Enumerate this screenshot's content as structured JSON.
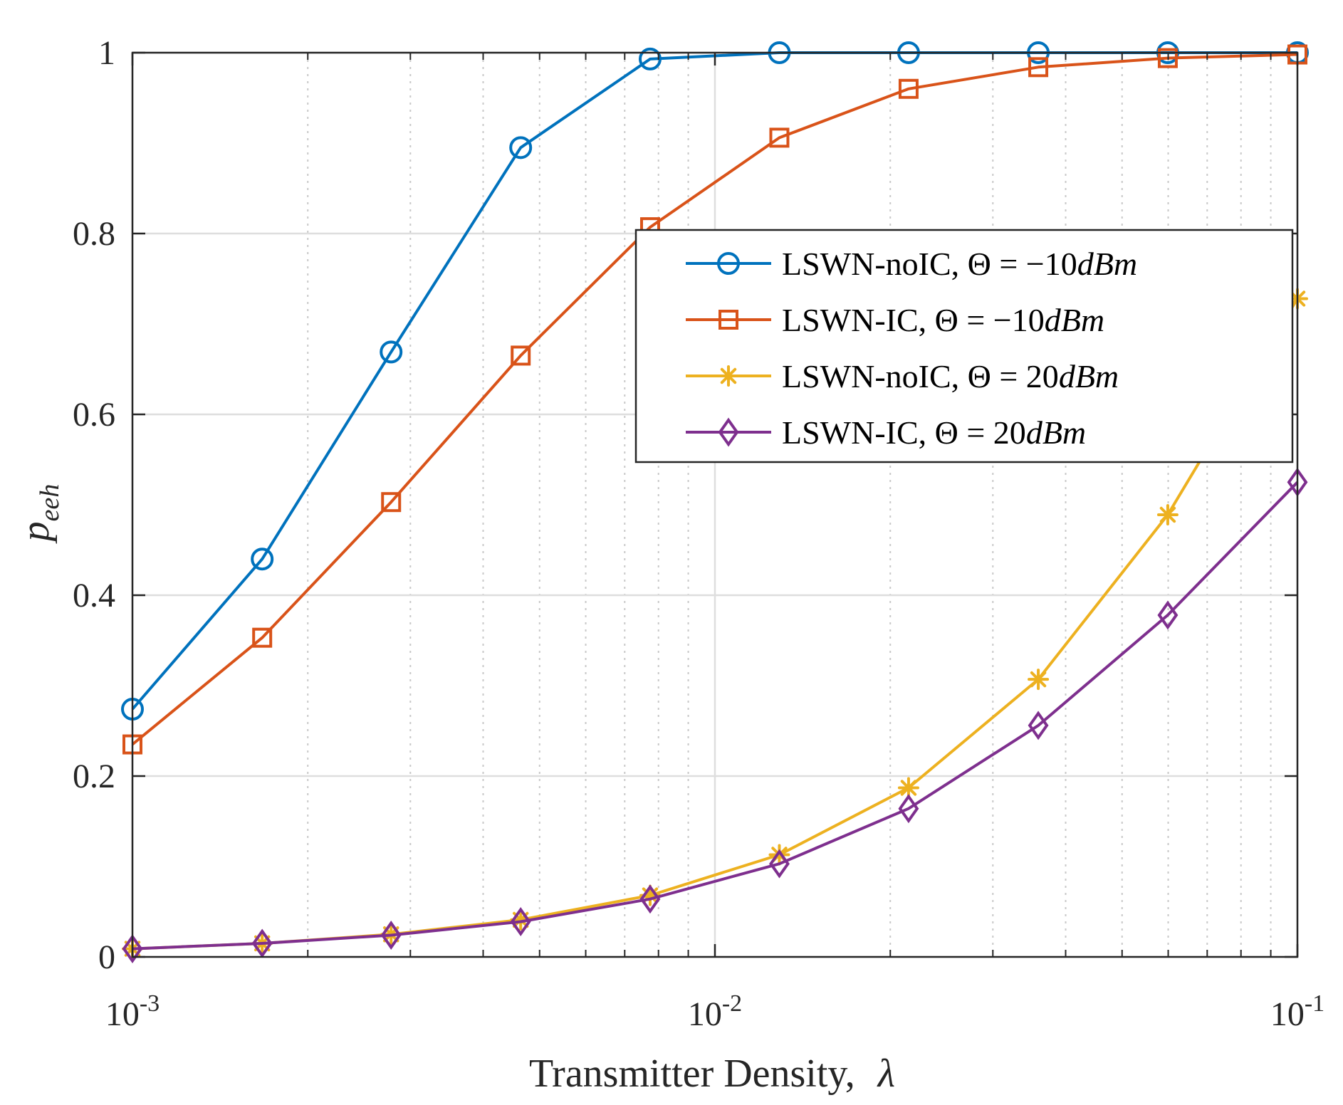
{
  "chart_data": {
    "type": "line",
    "title": "",
    "xlabel": "Transmitter Density,",
    "xlabel_symbol": "λ",
    "ylabel": "p",
    "ylabel_subscript": "eeh",
    "xscale": "log",
    "xlim": [
      0.001,
      0.1
    ],
    "ylim": [
      0,
      1
    ],
    "grid": true,
    "x_ticks": [
      {
        "value": 0.001,
        "base": "10",
        "exp": "-3"
      },
      {
        "value": 0.01,
        "base": "10",
        "exp": "-2"
      },
      {
        "value": 0.1,
        "base": "10",
        "exp": "-1"
      }
    ],
    "y_ticks": [
      {
        "value": 0,
        "label": "0"
      },
      {
        "value": 0.2,
        "label": "0.2"
      },
      {
        "value": 0.4,
        "label": "0.4"
      },
      {
        "value": 0.6,
        "label": "0.6"
      },
      {
        "value": 0.8,
        "label": "0.8"
      },
      {
        "value": 1,
        "label": "1"
      }
    ],
    "x": [
      0.001,
      0.00167,
      0.00278,
      0.00464,
      0.00774,
      0.0129,
      0.0215,
      0.0359,
      0.0599,
      0.1
    ],
    "series": [
      {
        "name": "LSWN-noIC, Θ = −10dBm",
        "label_prefix": "LSWN-noIC, Θ = −10",
        "label_unit": "dBm",
        "marker": "circle",
        "color": "#0072BD",
        "values": [
          0.274,
          0.44,
          0.669,
          0.895,
          0.993,
          1.0,
          1.0,
          1.0,
          1.0,
          1.0
        ]
      },
      {
        "name": "LSWN-IC, Θ = −10dBm",
        "label_prefix": "LSWN-IC, Θ = −10",
        "label_unit": "dBm",
        "marker": "square",
        "color": "#D95319",
        "values": [
          0.235,
          0.353,
          0.503,
          0.665,
          0.807,
          0.906,
          0.96,
          0.984,
          0.994,
          0.998
        ]
      },
      {
        "name": "LSWN-noIC, Θ = 20dBm",
        "label_prefix": "LSWN-noIC, Θ = 20",
        "label_unit": "dBm",
        "marker": "asterisk",
        "color": "#EDB120",
        "values": [
          0.009,
          0.015,
          0.025,
          0.041,
          0.068,
          0.113,
          0.187,
          0.307,
          0.489,
          0.728
        ]
      },
      {
        "name": "LSWN-IC, Θ = 20dBm",
        "label_prefix": "LSWN-IC, Θ = 20",
        "label_unit": "dBm",
        "marker": "diamond",
        "color": "#7E2F8E",
        "values": [
          0.009,
          0.015,
          0.024,
          0.039,
          0.064,
          0.103,
          0.164,
          0.256,
          0.378,
          0.525
        ]
      }
    ],
    "legend_location": "upper-right-inside"
  }
}
